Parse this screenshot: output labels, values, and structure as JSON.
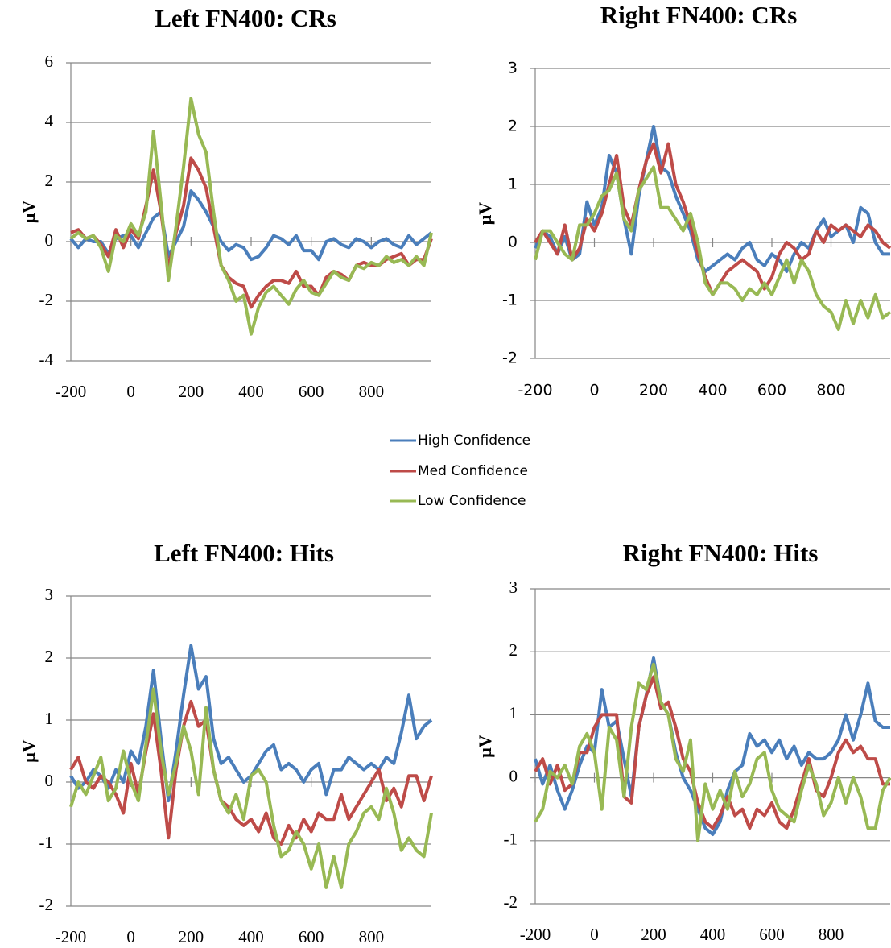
{
  "chart_data": [
    {
      "type": "line",
      "title": "Left FN400: CRs",
      "ylabel": "μV",
      "x": [
        -200,
        -175,
        -150,
        -125,
        -100,
        -75,
        -50,
        -25,
        0,
        25,
        50,
        75,
        100,
        125,
        150,
        175,
        200,
        225,
        250,
        275,
        300,
        325,
        350,
        375,
        400,
        425,
        450,
        475,
        500,
        525,
        550,
        575,
        600,
        625,
        650,
        675,
        700,
        725,
        750,
        775,
        800,
        825,
        850,
        875,
        900,
        925,
        950,
        975,
        1000
      ],
      "xlim": [
        -200,
        1000
      ],
      "xticks": [
        -200,
        0,
        200,
        400,
        600,
        800
      ],
      "ylim": [
        -4,
        6
      ],
      "yticks": [
        -4,
        -2,
        0,
        2,
        4,
        6
      ],
      "grid": true,
      "series": [
        {
          "name": "High Confidence",
          "color": "#4a7ebb",
          "values": [
            0.1,
            -0.2,
            0.1,
            0,
            0,
            -0.4,
            0.1,
            0.2,
            0.2,
            -0.2,
            0.3,
            0.8,
            1.0,
            -0.5,
            0,
            0.5,
            1.7,
            1.4,
            1.0,
            0.5,
            0,
            -0.3,
            -0.1,
            -0.2,
            -0.6,
            -0.5,
            -0.2,
            0.2,
            0.1,
            -0.1,
            0.2,
            -0.3,
            -0.3,
            -0.6,
            0,
            0.1,
            -0.1,
            -0.2,
            0.1,
            0,
            -0.2,
            0,
            0.1,
            -0.1,
            -0.2,
            0.2,
            -0.1,
            0.1,
            0.3
          ]
        },
        {
          "name": "Med Confidence",
          "color": "#be4b48",
          "values": [
            0.3,
            0.4,
            0.1,
            0.2,
            -0.1,
            -0.5,
            0.4,
            -0.2,
            0.4,
            0.1,
            1.2,
            2.4,
            1.0,
            -0.9,
            0.3,
            1.2,
            2.8,
            2.4,
            1.8,
            0.5,
            -0.8,
            -1.2,
            -1.4,
            -1.5,
            -2.2,
            -1.8,
            -1.5,
            -1.3,
            -1.3,
            -1.4,
            -1.0,
            -1.5,
            -1.5,
            -1.8,
            -1.2,
            -1.0,
            -1.1,
            -1.3,
            -0.8,
            -0.7,
            -0.8,
            -0.8,
            -0.6,
            -0.5,
            -0.4,
            -0.8,
            -0.6,
            -0.6,
            0.1
          ]
        },
        {
          "name": "Low Confidence",
          "color": "#98b954",
          "values": [
            0.1,
            0.3,
            0.1,
            0.2,
            -0.2,
            -1.0,
            0.2,
            0,
            0.6,
            0.2,
            1.0,
            3.7,
            1.3,
            -1.3,
            0.5,
            2.5,
            4.8,
            3.6,
            3.0,
            1.0,
            -0.8,
            -1.3,
            -2.0,
            -1.8,
            -3.1,
            -2.2,
            -1.7,
            -1.5,
            -1.8,
            -2.1,
            -1.6,
            -1.3,
            -1.7,
            -1.8,
            -1.4,
            -1.0,
            -1.2,
            -1.3,
            -0.8,
            -0.9,
            -0.7,
            -0.8,
            -0.5,
            -0.7,
            -0.6,
            -0.8,
            -0.5,
            -0.8,
            0.3
          ]
        }
      ]
    },
    {
      "type": "line",
      "title": "Right FN400: CRs",
      "ylabel": "μV",
      "x": [
        -200,
        -175,
        -150,
        -125,
        -100,
        -75,
        -50,
        -25,
        0,
        25,
        50,
        75,
        100,
        125,
        150,
        175,
        200,
        225,
        250,
        275,
        300,
        325,
        350,
        375,
        400,
        425,
        450,
        475,
        500,
        525,
        550,
        575,
        600,
        625,
        650,
        675,
        700,
        725,
        750,
        775,
        800,
        825,
        850,
        875,
        900,
        925,
        950,
        975,
        1000
      ],
      "xlim": [
        -200,
        1000
      ],
      "xticks": [
        -200,
        0,
        200,
        400,
        600,
        800
      ],
      "ylim": [
        -2,
        3
      ],
      "yticks": [
        -2,
        -1,
        0,
        1,
        2,
        3
      ],
      "grid": true,
      "series": [
        {
          "color": "#4a7ebb",
          "values": [
            -0.1,
            0.2,
            0.1,
            -0.2,
            0.1,
            -0.3,
            -0.2,
            0.7,
            0.3,
            0.6,
            1.5,
            1.2,
            0.4,
            -0.2,
            0.8,
            1.4,
            2.0,
            1.3,
            1.2,
            0.8,
            0.5,
            0.2,
            -0.3,
            -0.5,
            -0.4,
            -0.3,
            -0.2,
            -0.3,
            -0.1,
            0,
            -0.3,
            -0.4,
            -0.2,
            -0.3,
            -0.5,
            -0.2,
            0,
            -0.1,
            0.2,
            0.4,
            0.1,
            0.2,
            0.3,
            0,
            0.6,
            0.5,
            0,
            -0.2,
            -0.2
          ]
        },
        {
          "color": "#be4b48",
          "values": [
            0,
            0.2,
            0,
            -0.2,
            0.3,
            -0.3,
            -0.1,
            0.4,
            0.2,
            0.5,
            1.0,
            1.5,
            0.6,
            0.3,
            0.9,
            1.4,
            1.7,
            1.2,
            1.7,
            1.0,
            0.7,
            0.3,
            -0.2,
            -0.6,
            -0.9,
            -0.7,
            -0.5,
            -0.4,
            -0.3,
            -0.4,
            -0.5,
            -0.8,
            -0.6,
            -0.2,
            0,
            -0.1,
            -0.3,
            -0.2,
            0.2,
            0,
            0.3,
            0.2,
            0.3,
            0.2,
            0.1,
            0.3,
            0.2,
            0,
            -0.1
          ]
        },
        {
          "color": "#98b954",
          "values": [
            -0.3,
            0.2,
            0.2,
            0,
            -0.2,
            -0.3,
            0.3,
            0.3,
            0.5,
            0.8,
            0.9,
            1.2,
            0.4,
            0.2,
            0.9,
            1.1,
            1.3,
            0.6,
            0.6,
            0.4,
            0.2,
            0.5,
            0,
            -0.7,
            -0.9,
            -0.7,
            -0.7,
            -0.8,
            -1.0,
            -0.8,
            -0.9,
            -0.7,
            -0.9,
            -0.6,
            -0.3,
            -0.7,
            -0.3,
            -0.5,
            -0.9,
            -1.1,
            -1.2,
            -1.5,
            -1.0,
            -1.4,
            -1.0,
            -1.3,
            -0.9,
            -1.3,
            -1.2
          ]
        }
      ]
    },
    {
      "type": "line",
      "title": "Left FN400: Hits",
      "ylabel": "μV",
      "x": [
        -200,
        -175,
        -150,
        -125,
        -100,
        -75,
        -50,
        -25,
        0,
        25,
        50,
        75,
        100,
        125,
        150,
        175,
        200,
        225,
        250,
        275,
        300,
        325,
        350,
        375,
        400,
        425,
        450,
        475,
        500,
        525,
        550,
        575,
        600,
        625,
        650,
        675,
        700,
        725,
        750,
        775,
        800,
        825,
        850,
        875,
        900,
        925,
        950,
        975,
        1000
      ],
      "xlim": [
        -200,
        1000
      ],
      "xticks": [
        -200,
        0,
        200,
        400,
        600,
        800
      ],
      "ylim": [
        -2,
        3
      ],
      "yticks": [
        -2,
        -1,
        0,
        1,
        2,
        3
      ],
      "grid": true,
      "series": [
        {
          "color": "#4a7ebb",
          "values": [
            0.1,
            -0.1,
            0,
            0.2,
            0.1,
            -0.1,
            0.2,
            0,
            0.5,
            0.3,
            0.9,
            1.8,
            0.7,
            -0.3,
            0.5,
            1.4,
            2.2,
            1.5,
            1.7,
            0.7,
            0.3,
            0.4,
            0.2,
            0,
            0.1,
            0.3,
            0.5,
            0.6,
            0.2,
            0.3,
            0.2,
            0,
            0.2,
            0.3,
            -0.2,
            0.2,
            0.2,
            0.4,
            0.3,
            0.2,
            0.3,
            0.2,
            0.4,
            0.3,
            0.8,
            1.4,
            0.7,
            0.9,
            1.0
          ]
        },
        {
          "color": "#be4b48",
          "values": [
            0.2,
            0.4,
            0,
            -0.1,
            0.1,
            0,
            -0.2,
            -0.5,
            0.3,
            -0.2,
            0.5,
            1.1,
            0.2,
            -0.9,
            0.2,
            0.9,
            1.3,
            0.9,
            1.0,
            0.2,
            -0.3,
            -0.4,
            -0.6,
            -0.7,
            -0.6,
            -0.8,
            -0.5,
            -0.9,
            -1.0,
            -0.7,
            -0.9,
            -0.6,
            -0.8,
            -0.5,
            -0.6,
            -0.6,
            -0.2,
            -0.6,
            -0.4,
            -0.2,
            0,
            0.2,
            -0.3,
            -0.1,
            -0.4,
            0.1,
            0.1,
            -0.3,
            0.1
          ]
        },
        {
          "color": "#98b954",
          "values": [
            -0.4,
            0,
            -0.2,
            0.1,
            0.4,
            -0.3,
            -0.1,
            0.5,
            0,
            -0.3,
            0.6,
            1.5,
            0.5,
            -0.2,
            0.3,
            0.9,
            0.5,
            -0.2,
            1.2,
            0.2,
            -0.3,
            -0.5,
            -0.2,
            -0.6,
            0.1,
            0.2,
            0,
            -0.7,
            -1.2,
            -1.1,
            -0.8,
            -1.0,
            -1.4,
            -1.0,
            -1.7,
            -1.2,
            -1.7,
            -1.0,
            -0.8,
            -0.5,
            -0.4,
            -0.6,
            -0.1,
            -0.5,
            -1.1,
            -0.9,
            -1.1,
            -1.2,
            -0.5
          ]
        }
      ]
    },
    {
      "type": "line",
      "title": "Right FN400: Hits",
      "ylabel": "μV",
      "x": [
        -200,
        -175,
        -150,
        -125,
        -100,
        -75,
        -50,
        -25,
        0,
        25,
        50,
        75,
        100,
        125,
        150,
        175,
        200,
        225,
        250,
        275,
        300,
        325,
        350,
        375,
        400,
        425,
        450,
        475,
        500,
        525,
        550,
        575,
        600,
        625,
        650,
        675,
        700,
        725,
        750,
        775,
        800,
        825,
        850,
        875,
        900,
        925,
        950,
        975,
        1000
      ],
      "xlim": [
        -200,
        1000
      ],
      "xticks": [
        -200,
        0,
        200,
        400,
        600,
        800
      ],
      "ylim": [
        -2,
        3
      ],
      "yticks": [
        -2,
        -1,
        0,
        1,
        2,
        3
      ],
      "grid": true,
      "series": [
        {
          "color": "#4a7ebb",
          "values": [
            0.3,
            -0.1,
            0.2,
            -0.2,
            -0.5,
            -0.2,
            0.2,
            0.5,
            0.4,
            1.4,
            0.8,
            0.9,
            0.3,
            -0.3,
            0.8,
            1.3,
            1.9,
            1.2,
            1.0,
            0.4,
            0,
            -0.2,
            -0.5,
            -0.8,
            -0.9,
            -0.7,
            -0.2,
            0.1,
            0.2,
            0.7,
            0.5,
            0.6,
            0.4,
            0.6,
            0.3,
            0.5,
            0.2,
            0.4,
            0.3,
            0.3,
            0.4,
            0.6,
            1.0,
            0.6,
            1.0,
            1.5,
            0.9,
            0.8,
            0.8
          ]
        },
        {
          "color": "#be4b48",
          "values": [
            0.1,
            0.3,
            -0.1,
            0.2,
            -0.2,
            -0.1,
            0.4,
            0.4,
            0.8,
            1.0,
            1.0,
            1.0,
            -0.3,
            -0.4,
            0.8,
            1.3,
            1.6,
            1.1,
            1.2,
            0.8,
            0.3,
            0.1,
            -0.4,
            -0.7,
            -0.8,
            -0.6,
            -0.3,
            -0.6,
            -0.5,
            -0.8,
            -0.5,
            -0.6,
            -0.4,
            -0.7,
            -0.8,
            -0.5,
            -0.1,
            0.3,
            -0.2,
            -0.3,
            0,
            0.4,
            0.6,
            0.4,
            0.5,
            0.3,
            0.3,
            -0.1,
            -0.1
          ]
        },
        {
          "color": "#98b954",
          "values": [
            -0.7,
            -0.5,
            0.1,
            0,
            0.2,
            -0.1,
            0.5,
            0.7,
            0.4,
            -0.5,
            0.8,
            0.6,
            -0.3,
            0.8,
            1.5,
            1.4,
            1.8,
            1.2,
            1.0,
            0.3,
            0.1,
            0.6,
            -1.0,
            -0.1,
            -0.5,
            -0.2,
            -0.5,
            0.1,
            -0.3,
            -0.1,
            0.3,
            0.4,
            -0.2,
            -0.5,
            -0.6,
            -0.7,
            -0.2,
            0.2,
            -0.1,
            -0.6,
            -0.4,
            0,
            -0.4,
            0,
            -0.3,
            -0.8,
            -0.8,
            -0.2,
            0
          ]
        }
      ]
    }
  ]
}
